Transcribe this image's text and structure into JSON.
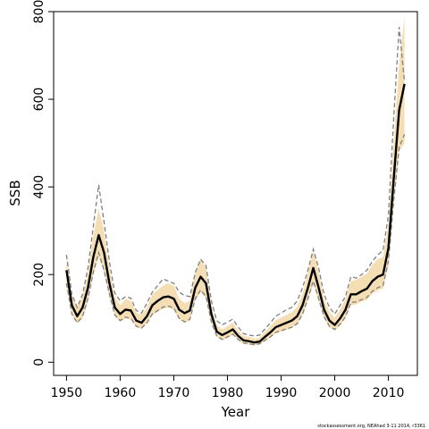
{
  "chart_data": {
    "type": "line",
    "title": "",
    "xlabel": "Year",
    "ylabel": "SSB",
    "xlim": [
      1947.6,
      2015.4
    ],
    "ylim": [
      -30,
      800
    ],
    "x_ticks": [
      1950,
      1960,
      1970,
      1980,
      1990,
      2000,
      2010
    ],
    "y_ticks": [
      0,
      200,
      400,
      600,
      800
    ],
    "grid": false,
    "legend": "none",
    "colors": {
      "band": "#f5deb3",
      "ssb": "#000000",
      "dashed": "#808080"
    },
    "x": [
      1950,
      1951,
      1952,
      1953,
      1954,
      1955,
      1956,
      1957,
      1958,
      1959,
      1960,
      1961,
      1962,
      1963,
      1964,
      1965,
      1966,
      1967,
      1968,
      1969,
      1970,
      1971,
      1972,
      1973,
      1974,
      1975,
      1976,
      1977,
      1978,
      1979,
      1980,
      1981,
      1982,
      1983,
      1984,
      1985,
      1986,
      1987,
      1988,
      1989,
      1990,
      1991,
      1992,
      1993,
      1994,
      1995,
      1996,
      1997,
      1998,
      1999,
      2000,
      2001,
      2002,
      2003,
      2004,
      2005,
      2006,
      2007,
      2008,
      2009,
      2010,
      2011,
      2012,
      2013
    ],
    "series": [
      {
        "values": [
          210,
          130,
          105,
          125,
          170,
          240,
          290,
          250,
          180,
          125,
          110,
          120,
          118,
          95,
          90,
          105,
          130,
          140,
          148,
          150,
          145,
          120,
          112,
          118,
          170,
          195,
          180,
          110,
          70,
          62,
          68,
          75,
          60,
          50,
          48,
          45,
          47,
          58,
          68,
          80,
          85,
          90,
          95,
          105,
          130,
          170,
          215,
          170,
          120,
          95,
          85,
          100,
          120,
          155,
          155,
          162,
          168,
          185,
          195,
          200,
          260,
          420,
          575,
          635
        ]
      },
      {
        "values": [
          175,
          108,
          88,
          100,
          140,
          200,
          240,
          205,
          150,
          105,
          92,
          100,
          98,
          80,
          76,
          88,
          108,
          115,
          122,
          125,
          120,
          98,
          90,
          95,
          140,
          160,
          145,
          90,
          58,
          50,
          55,
          62,
          50,
          42,
          40,
          38,
          40,
          48,
          56,
          66,
          70,
          74,
          78,
          86,
          108,
          140,
          180,
          140,
          100,
          80,
          72,
          84,
          100,
          130,
          132,
          138,
          142,
          156,
          164,
          168,
          220,
          360,
          480,
          500
        ]
      },
      {
        "values": [
          245,
          155,
          125,
          150,
          205,
          290,
          350,
          300,
          215,
          150,
          130,
          145,
          140,
          113,
          108,
          125,
          155,
          165,
          175,
          180,
          175,
          145,
          135,
          140,
          205,
          235,
          215,
          130,
          84,
          75,
          82,
          90,
          72,
          60,
          58,
          54,
          56,
          70,
          82,
          96,
          102,
          108,
          114,
          126,
          156,
          205,
          255,
          205,
          145,
          115,
          102,
          120,
          145,
          185,
          188,
          195,
          202,
          222,
          235,
          240,
          315,
          505,
          680,
          790
        ]
      },
      {
        "values": [
          180,
          110,
          90,
          105,
          145,
          205,
          250,
          210,
          155,
          108,
          95,
          103,
          100,
          82,
          78,
          90,
          110,
          118,
          126,
          128,
          124,
          100,
          92,
          98,
          145,
          165,
          150,
          92,
          60,
          52,
          58,
          64,
          52,
          44,
          42,
          40,
          42,
          50,
          58,
          68,
          72,
          76,
          80,
          88,
          110,
          145,
          185,
          145,
          104,
          82,
          75,
          87,
          104,
          136,
          138,
          143,
          148,
          162,
          170,
          175,
          230,
          370,
          490,
          520
        ]
      },
      {
        "values": [
          245,
          155,
          125,
          155,
          215,
          310,
          405,
          320,
          230,
          158,
          140,
          150,
          146,
          118,
          112,
          135,
          160,
          175,
          190,
          185,
          180,
          160,
          152,
          150,
          205,
          235,
          220,
          140,
          95,
          85,
          92,
          98,
          80,
          65,
          62,
          60,
          62,
          76,
          90,
          105,
          112,
          120,
          125,
          140,
          170,
          210,
          258,
          215,
          155,
          125,
          110,
          130,
          150,
          195,
          192,
          200,
          210,
          230,
          245,
          255,
          335,
          560,
          765,
          640
        ]
      }
    ]
  },
  "credit": "stockassessment.org,  NEAhad  3-11  2014,  r3361"
}
